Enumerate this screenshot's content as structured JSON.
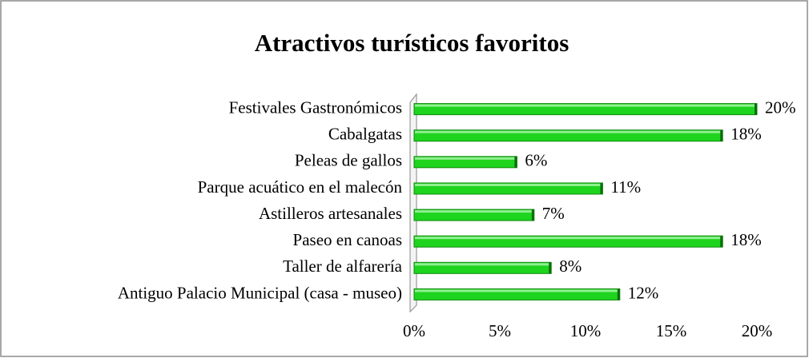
{
  "chart_data": {
    "type": "bar",
    "orientation": "horizontal",
    "title": "Atractivos turísticos favoritos",
    "categories": [
      "Festivales Gastronómicos",
      "Cabalgatas",
      "Peleas de gallos",
      "Parque acuático en el malecón",
      "Astilleros artesanales",
      "Paseo en canoas",
      "Taller de alfarería",
      "Antiguo Palacio Municipal (casa - museo)"
    ],
    "values": [
      20,
      18,
      6,
      11,
      7,
      18,
      8,
      12
    ],
    "value_labels": [
      "20%",
      "18%",
      "6%",
      "11%",
      "7%",
      "18%",
      "8%",
      "12%"
    ],
    "color": "#1ed41e",
    "xlim": [
      0,
      20
    ],
    "xticks": [
      {
        "value": 0,
        "label": "0%"
      },
      {
        "value": 5,
        "label": "5%"
      },
      {
        "value": 10,
        "label": "10%"
      },
      {
        "value": 15,
        "label": "15%"
      },
      {
        "value": 20,
        "label": "20%"
      }
    ],
    "grid": false
  }
}
